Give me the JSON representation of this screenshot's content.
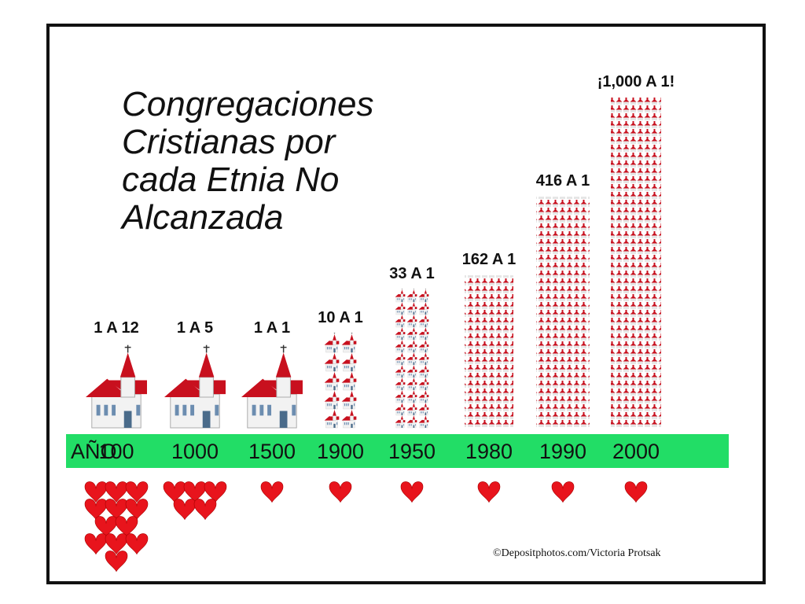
{
  "title_lines": [
    "Congregaciones",
    "Cristianas por",
    "cada Etnia No",
    "Alcanzada"
  ],
  "axis_label": "AÑO",
  "credit": "©Depositphotos.com/Victoria Protsak",
  "colors": {
    "timeline_green": "#22dd66",
    "heart": "#e8141c",
    "church_roof": "#c8101e",
    "church_wall": "#f2f2f2"
  },
  "icons": {
    "church": "church-icon",
    "heart": "heart-icon"
  },
  "chart_data": {
    "type": "pictograph",
    "categories": [
      "100",
      "1000",
      "1500",
      "1900",
      "1950",
      "1980",
      "1990",
      "2000"
    ],
    "labels": [
      "1 A 12",
      "1 A 5",
      "1 A 1",
      "10 A 1",
      "33 A 1",
      "162 A 1",
      "416 A 1",
      "¡1,000 A 1!"
    ],
    "series": [
      {
        "name": "churches",
        "values": [
          1,
          1,
          1,
          10,
          33,
          162,
          416,
          1000
        ]
      },
      {
        "name": "peoples",
        "values": [
          12,
          5,
          1,
          1,
          1,
          1,
          1,
          1
        ]
      }
    ]
  }
}
